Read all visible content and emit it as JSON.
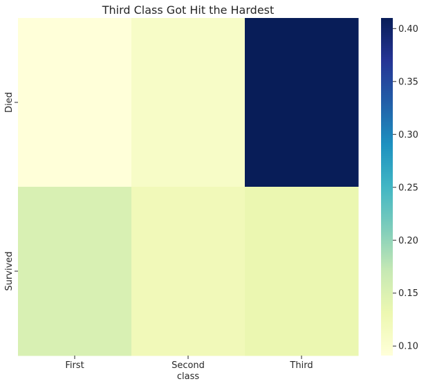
{
  "chart_data": {
    "type": "heatmap",
    "title": "Third Class Got Hit the Hardest",
    "xlabel": "class",
    "ylabel": "",
    "x_categories": [
      "First",
      "Second",
      "Third"
    ],
    "y_categories": [
      "Died",
      "Survived"
    ],
    "values": [
      [
        0.091,
        0.109,
        0.41
      ],
      [
        0.153,
        0.123,
        0.133
      ]
    ],
    "colorbar": {
      "colormap": "YlGnBu",
      "range": [
        0.091,
        0.41
      ],
      "ticks": [
        0.1,
        0.15,
        0.2,
        0.25,
        0.3,
        0.35,
        0.4
      ],
      "tick_labels": [
        "0.10",
        "0.15",
        "0.20",
        "0.25",
        "0.30",
        "0.35",
        "0.40"
      ]
    },
    "grid": false
  },
  "colors": {
    "colormap_stops": [
      "#ffffd9",
      "#edf8b1",
      "#c7e9b4",
      "#7fcdbb",
      "#41b6c4",
      "#1d91c0",
      "#225ea8",
      "#253494",
      "#081d58"
    ],
    "text": "#262626"
  }
}
